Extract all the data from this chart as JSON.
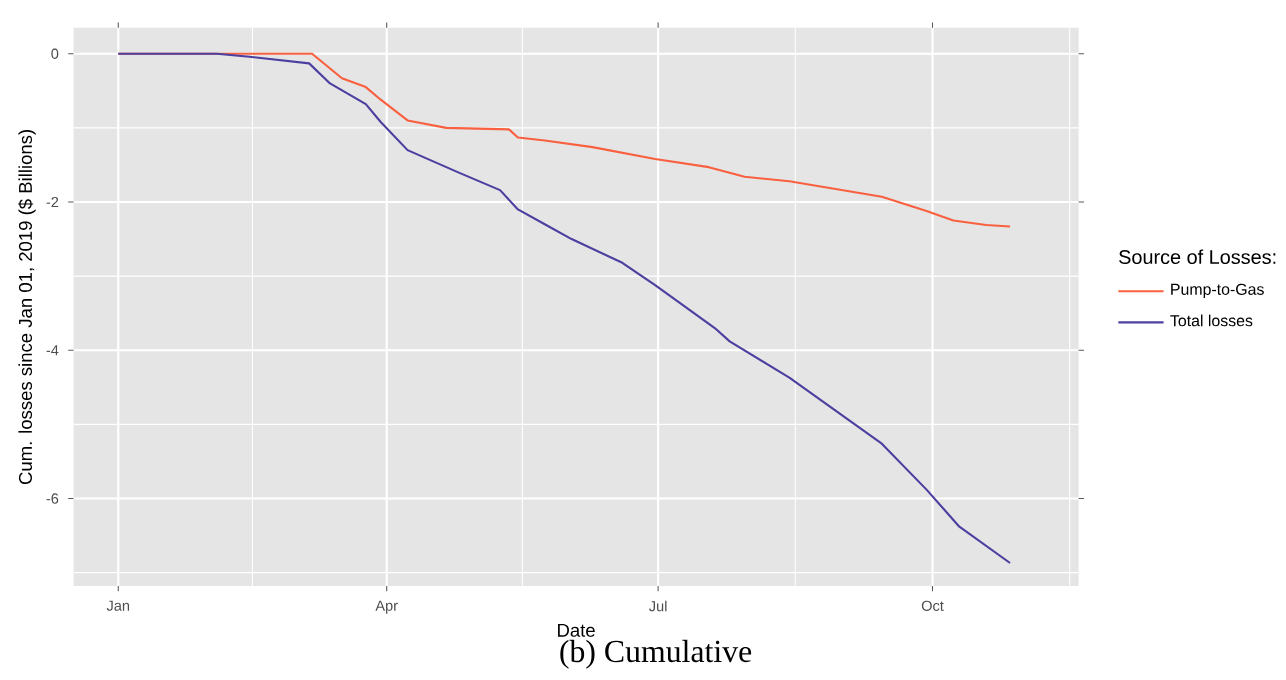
{
  "chart_data": {
    "type": "line",
    "xlabel": "Date",
    "ylabel": "Cum. losses since Jan 01, 2019 ($ Billions)",
    "legend_title": "Source of Losses:",
    "legend": "right",
    "grid": true,
    "line_style": "solid",
    "annotations": [
      "(b) Cumulative"
    ],
    "xlim": [
      "2018-12-17",
      "2019-11-19"
    ],
    "ylim": [
      -7.18,
      0.35
    ],
    "xticks": [
      {
        "value": "2019-01-01",
        "label": "Jan"
      },
      {
        "value": "2019-04-01",
        "label": "Apr"
      },
      {
        "value": "2019-07-01",
        "label": "Jul"
      },
      {
        "value": "2019-10-01",
        "label": "Oct"
      }
    ],
    "yticks": [
      -6,
      -4,
      -2,
      0
    ],
    "series": [
      {
        "name": "Pump-to-Gas",
        "color": "#f8603f",
        "x": [
          "2019-01-01",
          "2019-03-07",
          "2019-03-17",
          "2019-03-25",
          "2019-03-30",
          "2019-04-08",
          "2019-04-21",
          "2019-05-12",
          "2019-05-15",
          "2019-05-24",
          "2019-06-09",
          "2019-06-30",
          "2019-07-18",
          "2019-07-30",
          "2019-08-14",
          "2019-09-14",
          "2019-09-29",
          "2019-10-08",
          "2019-10-19",
          "2019-10-27"
        ],
        "values": [
          0,
          0,
          -0.33,
          -0.45,
          -0.62,
          -0.9,
          -1.0,
          -1.02,
          -1.13,
          -1.17,
          -1.26,
          -1.42,
          -1.53,
          -1.66,
          -1.72,
          -1.93,
          -2.12,
          -2.25,
          -2.31,
          -2.33
        ]
      },
      {
        "name": "Total losses",
        "color": "#4b3fa0",
        "x": [
          "2019-01-01",
          "2019-02-03",
          "2019-02-14",
          "2019-03-06",
          "2019-03-13",
          "2019-03-25",
          "2019-03-30",
          "2019-04-08",
          "2019-04-25",
          "2019-05-09",
          "2019-05-15",
          "2019-05-24",
          "2019-06-02",
          "2019-06-19",
          "2019-06-30",
          "2019-07-20",
          "2019-07-25",
          "2019-08-14",
          "2019-09-14",
          "2019-09-29",
          "2019-10-10",
          "2019-10-27"
        ],
        "values": [
          0,
          0,
          -0.04,
          -0.13,
          -0.4,
          -0.68,
          -0.92,
          -1.3,
          -1.6,
          -1.84,
          -2.1,
          -2.3,
          -2.5,
          -2.82,
          -3.12,
          -3.7,
          -3.88,
          -4.37,
          -5.26,
          -5.88,
          -6.38,
          -6.87
        ]
      }
    ]
  }
}
